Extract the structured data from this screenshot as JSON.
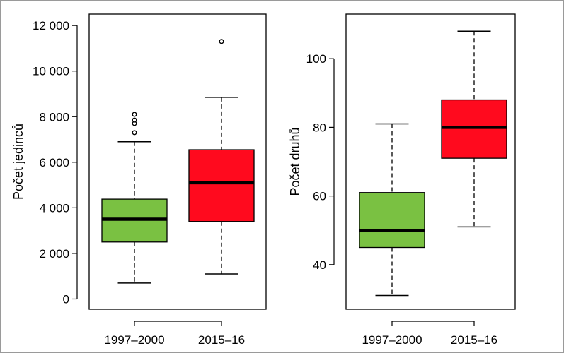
{
  "chart_data": [
    {
      "type": "boxplot",
      "ylabel": "Počet jedinců",
      "ylim": [
        -450,
        12500
      ],
      "yticks": [
        0,
        2000,
        4000,
        6000,
        8000,
        10000,
        12000
      ],
      "ytick_labels": [
        "0",
        "2 000",
        "4 000",
        "6 000",
        "8 000",
        "10 000",
        "12 000"
      ],
      "categories": [
        "1997–2000",
        "2015–16"
      ],
      "boxes": [
        {
          "category": "1997–2000",
          "color": "#7ac142",
          "whisker_low": 700,
          "q1": 2500,
          "median": 3500,
          "q3": 4380,
          "whisker_high": 6900,
          "outliers": [
            7300,
            7700,
            7850,
            8100
          ]
        },
        {
          "category": "2015–16",
          "color": "#ff0a1e",
          "whisker_low": 1100,
          "q1": 3400,
          "median": 5100,
          "q3": 6550,
          "whisker_high": 8850,
          "outliers": [
            11300
          ]
        }
      ]
    },
    {
      "type": "boxplot",
      "ylabel": "Počet druhů",
      "ylim": [
        27,
        113
      ],
      "yticks": [
        40,
        60,
        80,
        100
      ],
      "ytick_labels": [
        "40",
        "60",
        "80",
        "100"
      ],
      "categories": [
        "1997–2000",
        "2015–16"
      ],
      "boxes": [
        {
          "category": "1997–2000",
          "color": "#7ac142",
          "whisker_low": 31,
          "q1": 45,
          "median": 50,
          "q3": 61,
          "whisker_high": 81,
          "outliers": []
        },
        {
          "category": "2015–16",
          "color": "#ff0a1e",
          "whisker_low": 51,
          "q1": 71,
          "median": 80,
          "q3": 88,
          "whisker_high": 108,
          "outliers": []
        }
      ]
    }
  ]
}
